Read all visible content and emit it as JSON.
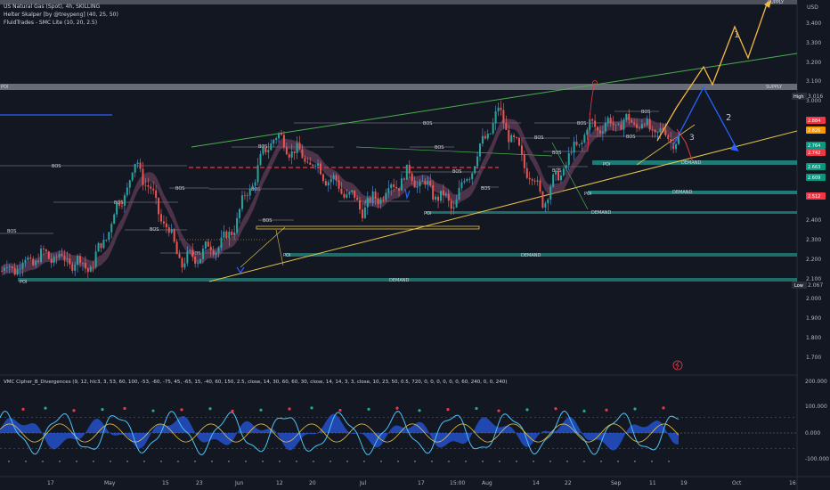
{
  "header": {
    "symbol_line": "US Natural Gas (Spot), 4h, SKILLING",
    "indicator_1": "Helter Skalper [by @treypeng] (40, 25, 50)",
    "indicator_2": "FluidTrades - SMC Lite (10, 20, 2.5)",
    "oscillator": "VMC Cipher_B_Divergences (9, 12, hlc3, 3, 53, 60, 100, -53, -60, -75, 45, -65, 15, -40, 60, 150, 2.5, close, 14, 30, 60, 60, 30, close, 14, 14, 3, 3, close, 10, 23, 50, 0.5, 720, 0, 0, 0, 0, 0, 0, 60, 240, 0, 0, 240)"
  },
  "price_axis": {
    "currency": "USD",
    "ticks": [
      "3.400",
      "3.300",
      "3.200",
      "3.100",
      "3.000",
      "2.400",
      "2.300",
      "2.200",
      "2.100",
      "2.000",
      "1.900",
      "1.800",
      "1.700"
    ],
    "tick_values": [
      3.4,
      3.3,
      3.2,
      3.1,
      3.0,
      2.4,
      2.3,
      2.2,
      2.1,
      2.0,
      1.9,
      1.8,
      1.7
    ],
    "high_label": "High",
    "high_value": "3.016",
    "low_label": "Low",
    "low_value": "2.067",
    "badges": [
      {
        "text": "2.884",
        "color": "#f23645"
      },
      {
        "text": "2.826",
        "color": "#ff9800"
      },
      {
        "text": "2.764",
        "color": "#089981"
      },
      {
        "text": "2.742",
        "color": "#f23645"
      },
      {
        "text": "2.663",
        "color": "#089981"
      },
      {
        "text": "2.609",
        "color": "#089981"
      },
      {
        "text": "2.512",
        "color": "#f23645"
      }
    ]
  },
  "osc_axis": {
    "ticks": [
      "200.000",
      "100.000",
      "0.000",
      "-100.000"
    ],
    "tick_values": [
      200,
      100,
      0,
      -100
    ]
  },
  "time_axis": {
    "labels": [
      "17",
      "May",
      "15",
      "23",
      "Jun",
      "12",
      "20",
      "Jul",
      "17",
      "15:00",
      "Aug",
      "14",
      "22",
      "Sep",
      "11",
      "19",
      "Oct",
      "16"
    ]
  },
  "zones": {
    "supply": "SUPPLY",
    "demand": "DEMAND",
    "poi": "POI",
    "bos": "BOS"
  },
  "projection_labels": [
    "1",
    "2",
    "3"
  ],
  "chart_data": {
    "type": "line",
    "title": "US Natural Gas (Spot), 4h, SKILLING",
    "ylabel": "USD",
    "ylim": [
      1.6,
      3.5
    ],
    "price_path": [
      {
        "t": "17",
        "v": 2.14
      },
      {
        "t": "May",
        "v": 2.22
      },
      {
        "t": "15",
        "v": 2.16
      },
      {
        "t": "23",
        "v": 2.69
      },
      {
        "t": "Jun",
        "v": 2.18
      },
      {
        "t": "12",
        "v": 2.3
      },
      {
        "t": "20",
        "v": 2.83
      },
      {
        "t": "Jul",
        "v": 2.66
      },
      {
        "t": "17",
        "v": 2.46
      },
      {
        "t": "15:00",
        "v": 2.63
      },
      {
        "t": "Aug",
        "v": 2.47
      },
      {
        "t": "14",
        "v": 2.95
      },
      {
        "t": "22",
        "v": 2.5
      },
      {
        "t": "Sep",
        "v": 2.87
      },
      {
        "t": "11",
        "v": 2.9
      },
      {
        "t": "19",
        "v": 2.8
      }
    ],
    "levels": {
      "supply_top": 3.5,
      "supply_poi": 3.09,
      "demand_1": 2.66,
      "demand_2": 2.57,
      "demand_3": 2.44,
      "demand_4": 2.22,
      "demand_5": 2.1
    },
    "oscillator_ylim": [
      -150,
      200
    ]
  }
}
